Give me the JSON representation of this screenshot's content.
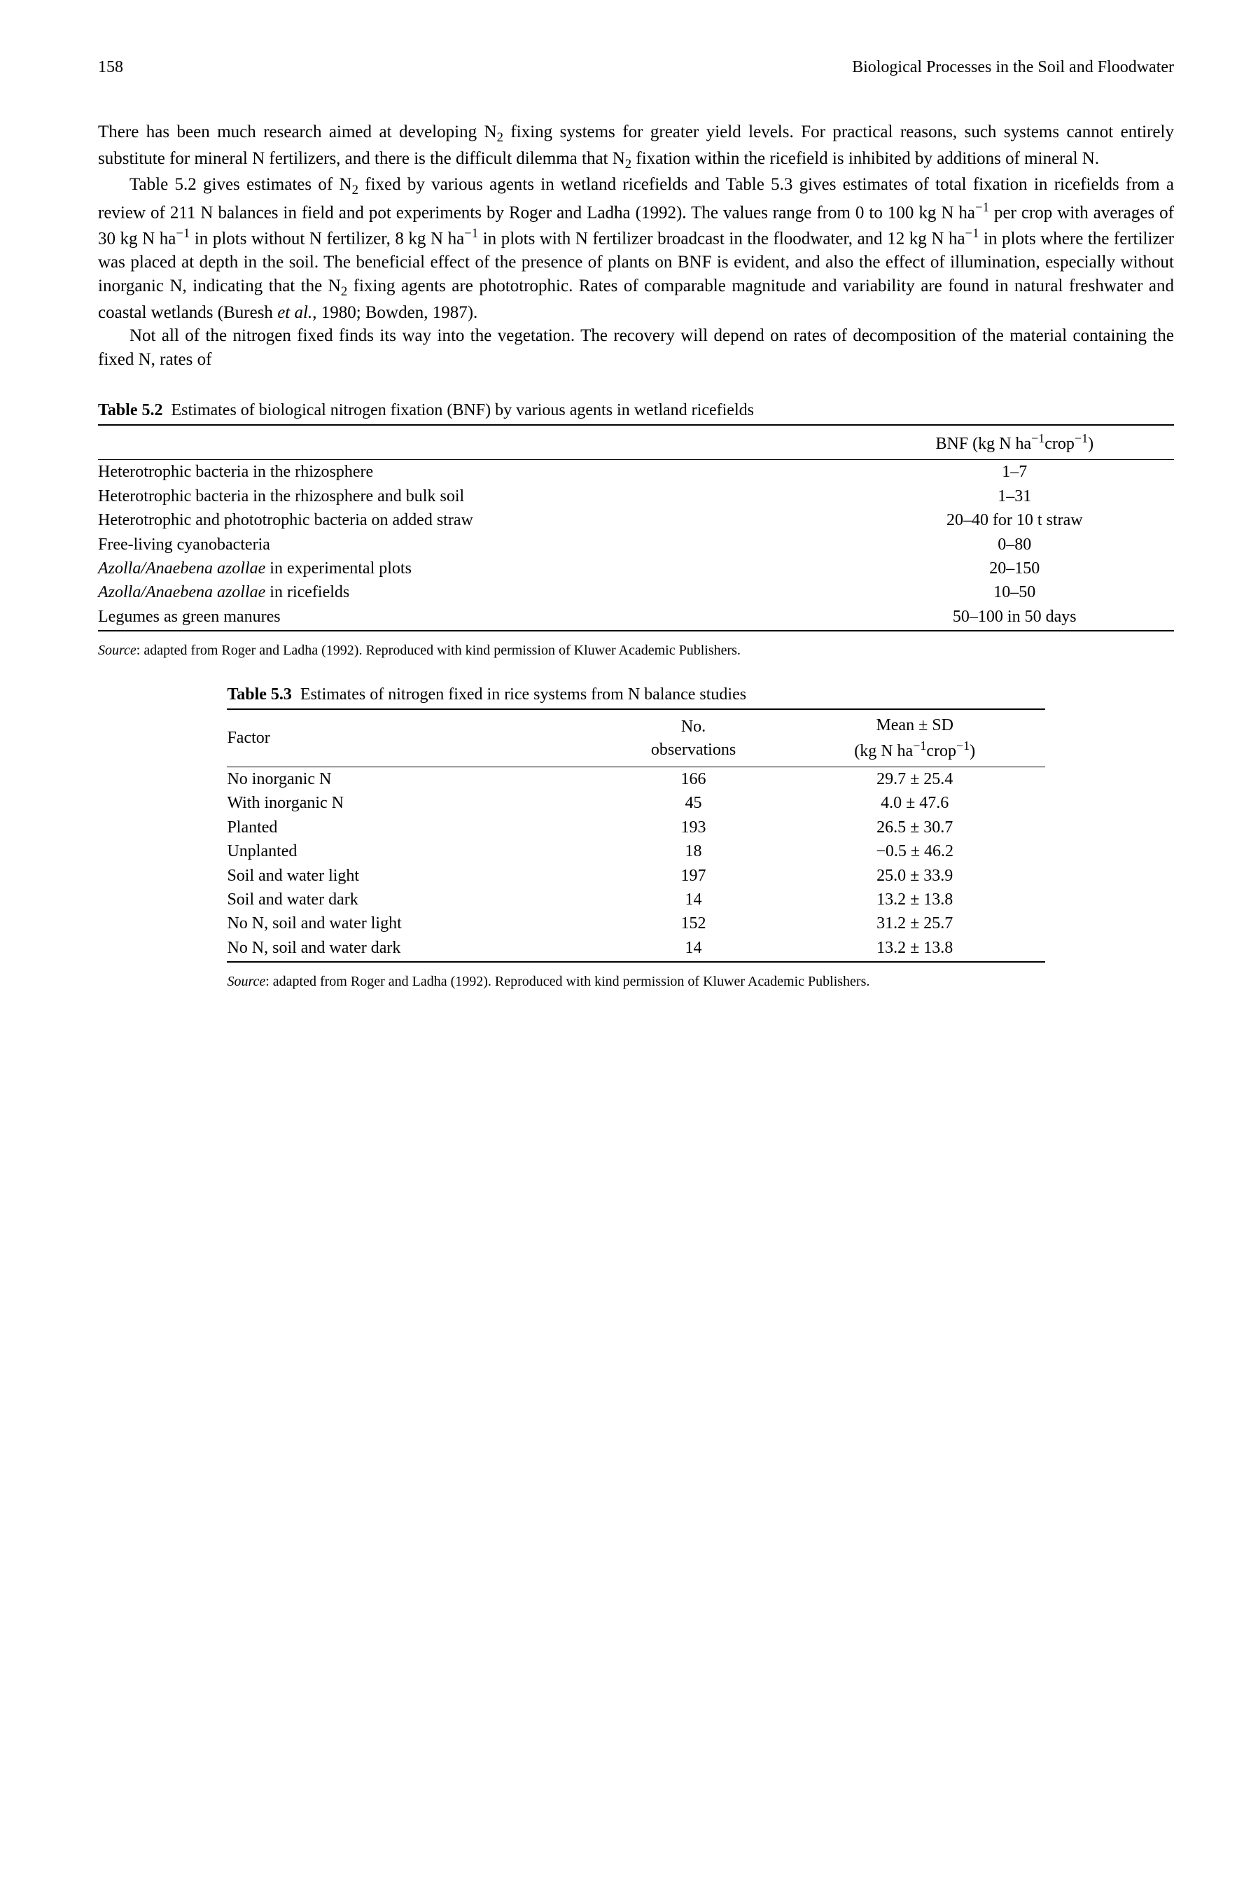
{
  "header": {
    "page_number": "158",
    "running_title": "Biological Processes in the Soil and Floodwater"
  },
  "paragraphs": {
    "p1_a": "There has been much research aimed at developing N",
    "p1_b": " fixing systems for greater yield levels. For practical reasons, such systems cannot entirely substitute for mineral N fertilizers, and there is the difficult dilemma that N",
    "p1_c": " fixation within the ricefield is inhibited by additions of mineral N.",
    "p2_a": "Table 5.2 gives estimates of N",
    "p2_b": " fixed by various agents in wetland ricefields and Table 5.3 gives estimates of total fixation in ricefields from a review of 211 N balances in field and pot experiments by Roger and Ladha (1992). The values range from 0 to 100 kg N ha",
    "p2_c": " per crop with averages of 30 kg N ha",
    "p2_d": " in plots without N fertilizer, 8 kg N ha",
    "p2_e": " in plots with N fertilizer broadcast in the floodwater, and 12 kg N ha",
    "p2_f": " in plots where the fertilizer was placed at depth in the soil. The beneficial effect of the presence of plants on BNF is evident, and also the effect of illumination, especially without inorganic N, indicating that the N",
    "p2_g": " fixing agents are phototrophic. Rates of comparable magnitude and variability are found in natural freshwater and coastal wetlands (Buresh ",
    "p2_h": "et al.",
    "p2_i": ", 1980; Bowden, 1987).",
    "p3": "Not all of the nitrogen fixed finds its way into the vegetation. The recovery will depend on rates of decomposition of the material containing the fixed N, rates of"
  },
  "table52": {
    "label": "Table 5.2",
    "caption": "Estimates of biological nitrogen fixation (BNF) by various agents in wetland ricefields",
    "col2_header_a": "BNF (kg N ha",
    "col2_header_b": "crop",
    "col2_header_c": ")",
    "rows": [
      {
        "agent_a": "Heterotrophic bacteria in the rhizosphere",
        "agent_b": "",
        "value": "1–7"
      },
      {
        "agent_a": "Heterotrophic bacteria in the rhizosphere and bulk soil",
        "agent_b": "",
        "value": "1–31"
      },
      {
        "agent_a": "Heterotrophic and phototrophic bacteria on added straw",
        "agent_b": "",
        "value": "20–40 for 10 t straw"
      },
      {
        "agent_a": "Free-living cyanobacteria",
        "agent_b": "",
        "value": "0–80"
      },
      {
        "agent_a": "Azolla/Anaebena azollae",
        "agent_b": " in experimental plots",
        "value": "20–150"
      },
      {
        "agent_a": "Azolla/Anaebena azollae",
        "agent_b": " in ricefields",
        "value": "10–50"
      },
      {
        "agent_a": "Legumes as green manures",
        "agent_b": "",
        "value": "50–100 in 50 days"
      }
    ],
    "source_label": "Source",
    "source_text": ": adapted from Roger and Ladha (1992). Reproduced with kind permission of Kluwer Academic Publishers."
  },
  "table53": {
    "label": "Table 5.3",
    "caption": "Estimates of nitrogen fixed in rice systems from N balance studies",
    "col1": "Factor",
    "col2_a": "No.",
    "col2_b": "observations",
    "col3_a": "Mean ± ",
    "col3_sd": "SD",
    "col3_b": "(kg N ha",
    "col3_c": "crop",
    "col3_d": ")",
    "rows": [
      {
        "factor": "No inorganic N",
        "n": "166",
        "mean": "29.7 ± 25.4"
      },
      {
        "factor": "With inorganic N",
        "n": "45",
        "mean": "4.0 ± 47.6"
      },
      {
        "factor": "Planted",
        "n": "193",
        "mean": "26.5 ± 30.7"
      },
      {
        "factor": "Unplanted",
        "n": "18",
        "mean": "−0.5 ± 46.2"
      },
      {
        "factor": "Soil and water light",
        "n": "197",
        "mean": "25.0 ± 33.9"
      },
      {
        "factor": "Soil and water dark",
        "n": "14",
        "mean": "13.2 ± 13.8"
      },
      {
        "factor": "No N, soil and water light",
        "n": "152",
        "mean": "31.2 ± 25.7"
      },
      {
        "factor": "No N, soil and water dark",
        "n": "14",
        "mean": "13.2 ± 13.8"
      }
    ],
    "source_label": "Source",
    "source_text": ": adapted from Roger and Ladha (1992). Reproduced with kind permission of Kluwer Academic Publishers."
  }
}
